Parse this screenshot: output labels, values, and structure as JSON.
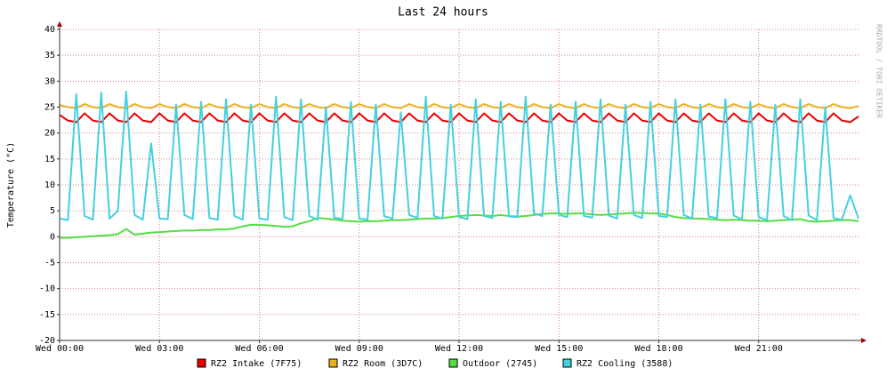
{
  "chart_data": {
    "type": "line",
    "title": "Last 24 hours",
    "y_label": "Temperature (°C)",
    "watermark": "RRDTOOL / TOBI OETIKER",
    "grid": true,
    "xlim": [
      0,
      24
    ],
    "ylim": [
      -20,
      40
    ],
    "yticks": [
      -20,
      -15,
      -10,
      -5,
      0,
      5,
      10,
      15,
      20,
      25,
      30,
      35,
      40
    ],
    "xticks": [
      {
        "value": 0,
        "label": "Wed 00:00"
      },
      {
        "value": 3,
        "label": "Wed 03:00"
      },
      {
        "value": 6,
        "label": "Wed 06:00"
      },
      {
        "value": 9,
        "label": "Wed 09:00"
      },
      {
        "value": 12,
        "label": "Wed 12:00"
      },
      {
        "value": 15,
        "label": "Wed 15:00"
      },
      {
        "value": 18,
        "label": "Wed 18:00"
      },
      {
        "value": 21,
        "label": "Wed 21:00"
      }
    ],
    "x": [
      0,
      0.25,
      0.5,
      0.75,
      1,
      1.25,
      1.5,
      1.75,
      2,
      2.25,
      2.5,
      2.75,
      3,
      3.25,
      3.5,
      3.75,
      4,
      4.25,
      4.5,
      4.75,
      5,
      5.25,
      5.5,
      5.75,
      6,
      6.25,
      6.5,
      6.75,
      7,
      7.25,
      7.5,
      7.75,
      8,
      8.25,
      8.5,
      8.75,
      9,
      9.25,
      9.5,
      9.75,
      10,
      10.25,
      10.5,
      10.75,
      11,
      11.25,
      11.5,
      11.75,
      12,
      12.25,
      12.5,
      12.75,
      13,
      13.25,
      13.5,
      13.75,
      14,
      14.25,
      14.5,
      14.75,
      15,
      15.25,
      15.5,
      15.75,
      16,
      16.25,
      16.5,
      16.75,
      17,
      17.25,
      17.5,
      17.75,
      18,
      18.25,
      18.5,
      18.75,
      19,
      19.25,
      19.5,
      19.75,
      20,
      20.25,
      20.5,
      20.75,
      21,
      21.25,
      21.5,
      21.75,
      22,
      22.25,
      22.5,
      22.75,
      23,
      23.25,
      23.5,
      23.75,
      24
    ],
    "series": [
      {
        "name": "RZ2 Intake (7F75)",
        "color": "#ee0000",
        "values": [
          23.5,
          22.4,
          22.1,
          23.8,
          22.4,
          22.1,
          23.8,
          22.4,
          22.1,
          23.8,
          22.4,
          22.1,
          23.8,
          22.4,
          22.1,
          23.8,
          22.4,
          22.1,
          23.8,
          22.4,
          22.1,
          23.8,
          22.4,
          22.1,
          23.8,
          22.4,
          22.1,
          23.8,
          22.4,
          22.1,
          23.8,
          22.4,
          22.1,
          23.8,
          22.4,
          22.1,
          23.8,
          22.4,
          22.1,
          23.8,
          22.4,
          22.1,
          23.8,
          22.4,
          22.1,
          23.8,
          22.4,
          22.1,
          23.8,
          22.4,
          22.1,
          23.8,
          22.4,
          22.1,
          23.8,
          22.4,
          22.1,
          23.8,
          22.4,
          22.1,
          23.8,
          22.4,
          22.1,
          23.8,
          22.4,
          22.1,
          23.8,
          22.4,
          22.1,
          23.8,
          22.4,
          22.1,
          23.8,
          22.4,
          22.1,
          23.8,
          22.4,
          22.1,
          23.8,
          22.4,
          22.1,
          23.8,
          22.4,
          22.1,
          23.8,
          22.4,
          22.1,
          23.8,
          22.4,
          22.1,
          23.8,
          22.4,
          22.1,
          23.8,
          22.4,
          22.1,
          23.2
        ]
      },
      {
        "name": "RZ2 Room (3D7C)",
        "color": "#e8b020",
        "values": [
          25.4,
          25.0,
          24.8,
          25.6,
          25.0,
          24.8,
          25.6,
          25.0,
          24.8,
          25.6,
          25.0,
          24.8,
          25.6,
          25.0,
          24.8,
          25.6,
          25.0,
          24.8,
          25.6,
          25.0,
          24.8,
          25.6,
          25.0,
          24.8,
          25.6,
          25.0,
          24.8,
          25.6,
          25.0,
          24.8,
          25.6,
          25.0,
          24.8,
          25.6,
          25.0,
          24.8,
          25.6,
          25.0,
          24.8,
          25.6,
          25.0,
          24.8,
          25.6,
          25.0,
          24.8,
          25.6,
          25.0,
          24.8,
          25.6,
          25.0,
          24.8,
          25.6,
          25.0,
          24.8,
          25.6,
          25.0,
          24.8,
          25.6,
          25.0,
          24.8,
          25.6,
          25.0,
          24.8,
          25.6,
          25.0,
          24.8,
          25.6,
          25.0,
          24.8,
          25.6,
          25.0,
          24.8,
          25.6,
          25.0,
          24.8,
          25.6,
          25.0,
          24.8,
          25.6,
          25.0,
          24.8,
          25.6,
          25.0,
          24.8,
          25.6,
          25.0,
          24.8,
          25.6,
          25.0,
          24.8,
          25.6,
          25.0,
          24.8,
          25.6,
          25.0,
          24.8,
          25.2
        ]
      },
      {
        "name": "Outdoor (2745)",
        "color": "#55dd44",
        "values": [
          -0.2,
          -0.2,
          -0.1,
          0,
          0.1,
          0.2,
          0.3,
          0.5,
          1.5,
          0.4,
          0.6,
          0.8,
          0.9,
          1.0,
          1.1,
          1.2,
          1.2,
          1.3,
          1.3,
          1.4,
          1.4,
          1.6,
          2.0,
          2.3,
          2.3,
          2.2,
          2.1,
          1.9,
          2.0,
          2.6,
          3.0,
          3.6,
          3.5,
          3.3,
          3.1,
          3.0,
          2.9,
          3.0,
          3.0,
          3.1,
          3.2,
          3.2,
          3.3,
          3.4,
          3.5,
          3.5,
          3.6,
          3.8,
          4.0,
          4.1,
          4.2,
          4.1,
          4.0,
          4.2,
          4.0,
          3.9,
          4.0,
          4.2,
          4.4,
          4.5,
          4.5,
          4.4,
          4.5,
          4.5,
          4.3,
          4.2,
          4.3,
          4.4,
          4.5,
          4.6,
          4.6,
          4.5,
          4.5,
          4.2,
          3.8,
          3.6,
          3.5,
          3.5,
          3.4,
          3.3,
          3.2,
          3.3,
          3.2,
          3.1,
          3.1,
          3.0,
          3.1,
          3.2,
          3.3,
          3.4,
          3.0,
          2.9,
          3.0,
          3.1,
          3.2,
          3.2,
          3.0
        ]
      },
      {
        "name": "RZ2 Cooling (3588)",
        "color": "#44d0e0",
        "values": [
          3.5,
          3.2,
          27.5,
          4.0,
          3.3,
          27.8,
          3.5,
          5,
          28,
          4.2,
          3.3,
          18,
          3.5,
          3.4,
          25.5,
          4.2,
          3.4,
          26,
          3.6,
          3.3,
          26.5,
          4,
          3.3,
          25.5,
          3.5,
          3.3,
          27,
          3.8,
          3.2,
          26.5,
          4,
          3.3,
          25,
          3.7,
          3.4,
          26,
          3.5,
          3.3,
          25.5,
          4,
          3.5,
          24,
          4.2,
          3.6,
          27,
          4,
          3.5,
          25.5,
          3.8,
          3.4,
          26.5,
          4,
          3.6,
          26,
          3.9,
          3.8,
          27,
          4.5,
          4,
          25.5,
          4.2,
          3.8,
          26,
          4,
          3.7,
          26.5,
          4.1,
          3.5,
          25.5,
          4.2,
          3.6,
          26,
          4,
          3.8,
          26.5,
          4.2,
          3.5,
          25.5,
          3.9,
          3.6,
          26.5,
          4.1,
          3.3,
          26,
          3.8,
          3.2,
          25.5,
          4,
          3.2,
          26.5,
          4.1,
          3.2,
          25,
          3.6,
          3.3,
          8,
          3.5
        ]
      }
    ]
  }
}
